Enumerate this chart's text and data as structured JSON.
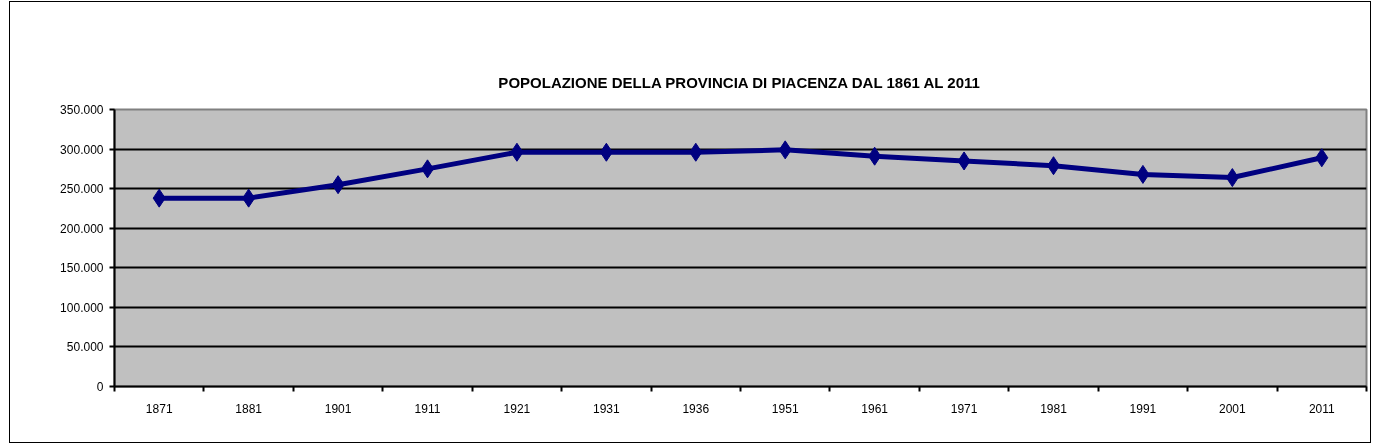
{
  "chart_data": {
    "type": "line",
    "title": "POPOLAZIONE DELLA PROVINCIA DI PIACENZA DAL 1861 AL 2011",
    "categories": [
      "1871",
      "1881",
      "1901",
      "1911",
      "1921",
      "1931",
      "1936",
      "1951",
      "1961",
      "1971",
      "1981",
      "1991",
      "2001",
      "2011"
    ],
    "values": [
      238000,
      238000,
      255000,
      275000,
      296000,
      296000,
      296000,
      299000,
      291000,
      285000,
      279000,
      268000,
      264000,
      289000
    ],
    "color": "#000080",
    "ylim": [
      0,
      350000
    ],
    "yticks": [
      0,
      {
        "value": 50000,
        "label": "50.000"
      },
      {
        "value": 100000,
        "label": "100.000"
      },
      {
        "value": 150000,
        "label": "150.000"
      },
      {
        "value": 200000,
        "label": "200.000"
      },
      {
        "value": 250000,
        "label": "250.000"
      },
      {
        "value": 300000,
        "label": "300.000"
      },
      {
        "value": 350000,
        "label": "350.000"
      }
    ],
    "grid": "y",
    "marker": "diamond",
    "line_style": "solid"
  }
}
